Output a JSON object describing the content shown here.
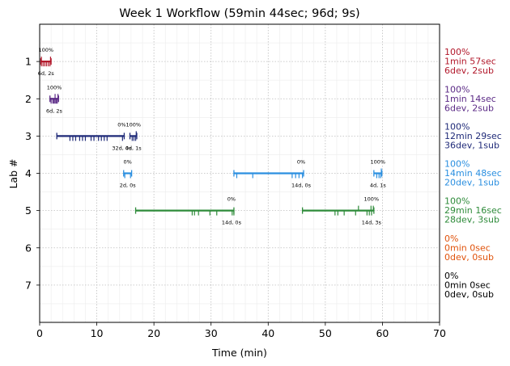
{
  "chart_data": {
    "type": "timeline",
    "title": "Week 1 Workflow (59min 44sec; 96d; 9s)",
    "xlabel": "Time (min)",
    "ylabel": "Lab #",
    "xlim": [
      0,
      70
    ],
    "ylim": [
      0,
      8
    ],
    "x_ticks": [
      "0",
      "10",
      "20",
      "30",
      "40",
      "50",
      "60",
      "70"
    ],
    "y_ticks": [
      "1",
      "2",
      "3",
      "4",
      "5",
      "6",
      "7"
    ],
    "grid": true,
    "labs": [
      {
        "lab": 1,
        "color": "#b2182b",
        "summary": [
          "100%",
          "1min 57sec",
          "6dev, 2sub"
        ],
        "sessions": [
          {
            "start": 0.2,
            "end": 2.0,
            "pct": "100%",
            "counts": "6d, 2s",
            "dev_ticks": [
              0.3,
              0.6,
              0.9,
              1.2,
              1.5,
              1.8
            ],
            "sub_ticks": [
              0.3,
              1.9
            ]
          }
        ]
      },
      {
        "lab": 2,
        "color": "#5b2a86",
        "summary": [
          "100%",
          "1min 14sec",
          "6dev, 2sub"
        ],
        "sessions": [
          {
            "start": 1.8,
            "end": 3.3,
            "pct": "100%",
            "counts": "6d, 2s",
            "dev_ticks": [
              2.0,
              2.3,
              2.5,
              2.7,
              2.9,
              3.1
            ],
            "sub_ticks": [
              2.7,
              3.2
            ]
          }
        ]
      },
      {
        "lab": 3,
        "color": "#1f2a78",
        "summary": [
          "100%",
          "12min 29sec",
          "36dev, 1sub"
        ],
        "sessions": [
          {
            "start": 3.0,
            "end": 14.8,
            "pct": "0%",
            "counts": "32d, 0s",
            "dev_ticks": [
              5.3,
              5.8,
              6.3,
              7.0,
              7.5,
              8.0,
              9.0,
              9.5,
              10.3,
              10.8,
              11.3,
              11.8,
              14.5
            ],
            "sub_ticks": []
          },
          {
            "start": 15.8,
            "end": 17.0,
            "pct": "100%",
            "counts": "4d, 1s",
            "dev_ticks": [
              16.2,
              16.5,
              16.8
            ],
            "sub_ticks": [
              16.9
            ]
          }
        ]
      },
      {
        "lab": 4,
        "color": "#2b8fe0",
        "summary": [
          "100%",
          "14min 48sec",
          "20dev, 1sub"
        ],
        "sessions": [
          {
            "start": 14.7,
            "end": 16.1,
            "pct": "0%",
            "counts": "2d, 0s",
            "dev_ticks": [
              14.9,
              15.9
            ],
            "sub_ticks": []
          },
          {
            "start": 34.0,
            "end": 46.2,
            "pct": "0%",
            "counts": "14d, 0s",
            "dev_ticks": [
              34.5,
              37.3,
              44.2,
              44.8,
              45.4,
              46.0
            ],
            "sub_ticks": []
          },
          {
            "start": 58.5,
            "end": 59.9,
            "pct": "100%",
            "counts": "4d, 1s",
            "dev_ticks": [
              59.0,
              59.4,
              59.7
            ],
            "sub_ticks": [
              59.8
            ]
          }
        ]
      },
      {
        "lab": 5,
        "color": "#2e8b3a",
        "summary": [
          "100%",
          "29min 16sec",
          "28dev, 3sub"
        ],
        "sessions": [
          {
            "start": 16.8,
            "end": 34.0,
            "pct": "0%",
            "counts": "14d, 0s",
            "dev_ticks": [
              26.7,
              27.1,
              27.8,
              29.8,
              31.0,
              33.7,
              34.0
            ],
            "sub_ticks": []
          },
          {
            "start": 46.0,
            "end": 58.5,
            "pct": "100%",
            "counts": "14d, 3s",
            "dev_ticks": [
              51.7,
              52.2,
              53.3,
              55.3,
              57.3,
              57.7,
              58.1
            ],
            "sub_ticks": [
              55.8,
              58.0,
              58.4
            ]
          }
        ]
      },
      {
        "lab": 6,
        "color": "#e0530c",
        "summary": [
          "0%",
          "0min 0sec",
          "0dev, 0sub"
        ],
        "sessions": []
      },
      {
        "lab": 7,
        "color": "#000000",
        "summary": [
          "0%",
          "0min 0sec",
          "0dev, 0sub"
        ],
        "sessions": []
      }
    ]
  }
}
